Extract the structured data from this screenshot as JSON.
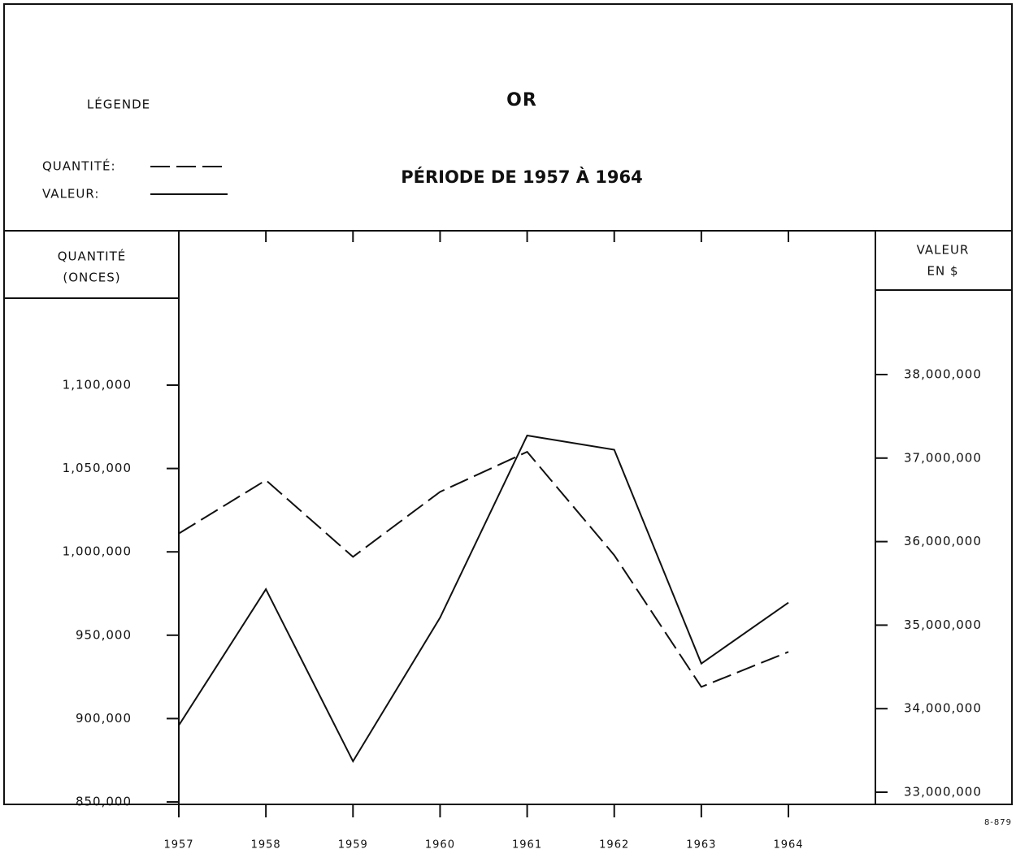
{
  "chart_data": {
    "type": "line",
    "title": "OR",
    "subtitle": "PÉRIODE DE 1957 À 1964",
    "legend_title": "LÉGENDE",
    "y_label": [
      "QUANTITÉ",
      "(ONCES)"
    ],
    "y2_label": [
      "VALEUR",
      "EN $"
    ],
    "note": "8-879",
    "x": [
      1957,
      1958,
      1959,
      1960,
      1961,
      1962,
      1963,
      1964
    ],
    "xlim": [
      1957,
      1964
    ],
    "xticks": [
      1957,
      1958,
      1959,
      1960,
      1961,
      1962,
      1963,
      1964
    ],
    "ylim": [
      850000,
      1100000
    ],
    "yticks": [
      {
        "value": 850000,
        "label": "850,000"
      },
      {
        "value": 900000,
        "label": "900,000"
      },
      {
        "value": 950000,
        "label": "950,000"
      },
      {
        "value": 1000000,
        "label": "1,000,000"
      },
      {
        "value": 1050000,
        "label": "1,050,000"
      },
      {
        "value": 1100000,
        "label": "1,100,000"
      }
    ],
    "y2lim": [
      33000000,
      38000000
    ],
    "y2ticks": [
      {
        "value": 33000000,
        "label": "33,000,000"
      },
      {
        "value": 34000000,
        "label": "34,000,000"
      },
      {
        "value": 35000000,
        "label": "35,000,000"
      },
      {
        "value": 36000000,
        "label": "36,000,000"
      },
      {
        "value": 37000000,
        "label": "37,000,000"
      },
      {
        "value": 38000000,
        "label": "38,000,000"
      }
    ],
    "series": [
      {
        "name": "QUANTITÉ:",
        "color": "#111111",
        "style": "dashed",
        "axis": "y",
        "values": [
          1011000,
          1043000,
          997000,
          1036000,
          1060000,
          998000,
          919000,
          940000
        ]
      },
      {
        "name": "VALEUR:",
        "color": "#111111",
        "style": "solid",
        "axis": "y2",
        "values": [
          33800000,
          35430000,
          33370000,
          35090000,
          37270000,
          37100000,
          34540000,
          35270000
        ]
      }
    ]
  }
}
